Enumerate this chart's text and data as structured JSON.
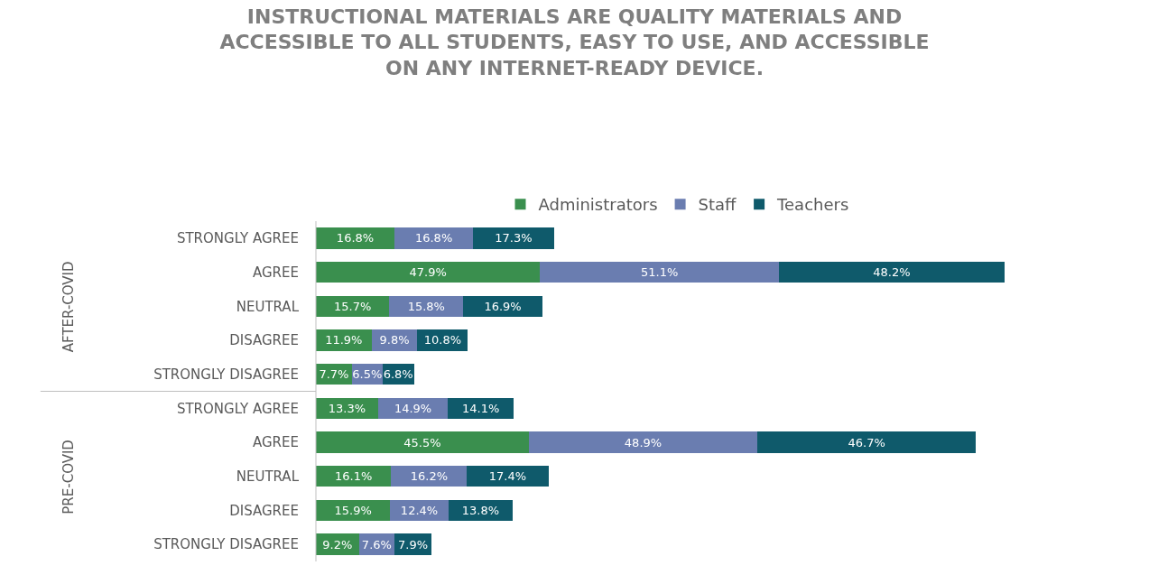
{
  "chart_data": {
    "type": "bar",
    "orientation": "horizontal",
    "stacked": true,
    "legend": "top",
    "title": "INSTRUCTIONAL MATERIALS ARE QUALITY MATERIALS AND ACCESSIBLE TO ALL STUDENTS, EASY TO USE, AND ACCESSIBLE ON ANY INTERNET-READY DEVICE.",
    "categories": [
      "STRONGLY AGREE",
      "AGREE",
      "NEUTRAL",
      "DISAGREE",
      "STRONGLY DISAGREE",
      "STRONGLY AGREE",
      "AGREE",
      "NEUTRAL",
      "DISAGREE",
      "STRONGLY DISAGREE"
    ],
    "annotations": [
      "AFTER-COVID",
      "PRE-COVID"
    ],
    "series": [
      {
        "name": "Administrators",
        "color": "#3a8f4e",
        "values": [
          16.8,
          47.9,
          15.7,
          11.9,
          7.7,
          13.3,
          45.5,
          16.1,
          15.9,
          9.2
        ],
        "value_labels": [
          "16.8%",
          "47.9%",
          "15.7%",
          "11.9%",
          "7.7%",
          "13.3%",
          "45.5%",
          "16.1%",
          "15.9%",
          "9.2%"
        ]
      },
      {
        "name": "Staff",
        "color": "#6a7db0",
        "values": [
          16.8,
          51.1,
          15.8,
          9.8,
          6.5,
          14.9,
          48.9,
          16.2,
          12.4,
          7.6
        ],
        "value_labels": [
          "16.8%",
          "51.1%",
          "15.8%",
          "9.8%",
          "6.5%",
          "14.9%",
          "48.9%",
          "16.2%",
          "12.4%",
          "7.6%"
        ]
      },
      {
        "name": "Teachers",
        "color": "#0f5a6b",
        "values": [
          17.3,
          48.2,
          16.9,
          10.8,
          6.8,
          14.1,
          46.7,
          17.4,
          13.8,
          7.9
        ],
        "value_labels": [
          "17.3%",
          "48.2%",
          "16.9%",
          "10.8%",
          "6.8%",
          "14.1%",
          "46.7%",
          "17.4%",
          "13.8%",
          "7.9%"
        ]
      }
    ]
  }
}
